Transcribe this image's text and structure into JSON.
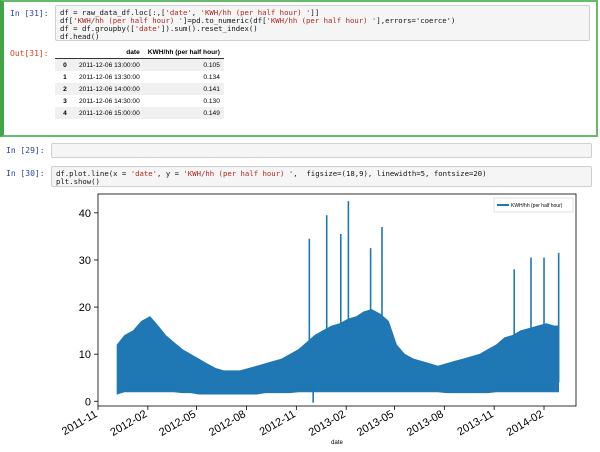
{
  "cell31": {
    "prompt_in": "In [31]:",
    "prompt_out": "Out[31]:",
    "code": [
      {
        "pre": "df = raw_data_df.loc[:,[",
        "s1": "'date'",
        "mid": ", ",
        "s2": "'KWH/hh (per half hour) '",
        "post": "]]"
      },
      {
        "pre": "df[",
        "s1": "'KWH/hh (per half hour) '",
        "mid": "]=pd.to_numeric(df[",
        "s2": "'KWH/hh (per half hour) '",
        "post": "],errors='coerce')"
      },
      {
        "pre": "df = df.groupby([",
        "s1": "'date'",
        "mid": "]).sum().reset_index()",
        "s2": "",
        "post": ""
      },
      {
        "pre": "df.head()",
        "s1": "",
        "mid": "",
        "s2": "",
        "post": ""
      }
    ],
    "table": {
      "columns": [
        "date",
        "KWH/hh (per half hour)"
      ],
      "rows": [
        {
          "idx": "0",
          "date": "2011-12-06 13:00:00",
          "value": "0.105"
        },
        {
          "idx": "1",
          "date": "2011-12-06 13:30:00",
          "value": "0.134"
        },
        {
          "idx": "2",
          "date": "2011-12-06 14:00:00",
          "value": "0.141"
        },
        {
          "idx": "3",
          "date": "2011-12-06 14:30:00",
          "value": "0.130"
        },
        {
          "idx": "4",
          "date": "2011-12-06 15:00:00",
          "value": "0.149"
        }
      ]
    }
  },
  "cell29": {
    "prompt_in": "In [29]:",
    "code": ""
  },
  "cell30": {
    "prompt_in": "In [30]:",
    "code": [
      {
        "pre": "df.plot.line(x = ",
        "s1": "'date'",
        "mid": ", y = ",
        "s2": "'KWH/hh (per half hour) '",
        "post": ",  figsize=(18,9), linewidth=5, fontsize=20)"
      },
      {
        "pre": "plt.show()",
        "s1": "",
        "mid": "",
        "s2": "",
        "post": ""
      }
    ]
  },
  "colors": {
    "series": "#1f77b4",
    "selected_border": "#42a447",
    "prompt_in": "#30409f",
    "prompt_out": "#d84315"
  },
  "chart_data": {
    "type": "line",
    "xlabel": "date",
    "ylabel": "",
    "ylim": [
      -1,
      44
    ],
    "yticks": [
      0,
      10,
      20,
      30,
      40
    ],
    "xlim": [
      "2011-11-01",
      "2014-04-01"
    ],
    "xticks": [
      "2011-11",
      "2012-02",
      "2012-05",
      "2012-08",
      "2012-11",
      "2013-02",
      "2013-05",
      "2013-08",
      "2013-11",
      "2014-02"
    ],
    "legend": {
      "placement": "top-right",
      "entries": [
        "KWH/hh (per half hour)"
      ]
    },
    "series": [
      {
        "name": "KWH/hh (per half hour)",
        "envelope": {
          "dates": [
            "2011-12-06",
            "2011-12-20",
            "2012-01-05",
            "2012-01-20",
            "2012-02-05",
            "2012-02-20",
            "2012-03-05",
            "2012-03-20",
            "2012-04-05",
            "2012-04-20",
            "2012-05-05",
            "2012-05-20",
            "2012-06-05",
            "2012-06-20",
            "2012-07-05",
            "2012-07-20",
            "2012-08-05",
            "2012-08-20",
            "2012-09-05",
            "2012-09-20",
            "2012-10-05",
            "2012-10-20",
            "2012-11-05",
            "2012-11-20",
            "2012-12-05",
            "2012-12-20",
            "2013-01-05",
            "2013-01-20",
            "2013-02-05",
            "2013-02-20",
            "2013-03-05",
            "2013-03-20",
            "2013-04-05",
            "2013-04-20",
            "2013-05-05",
            "2013-05-20",
            "2013-06-05",
            "2013-06-20",
            "2013-07-05",
            "2013-07-20",
            "2013-08-05",
            "2013-08-20",
            "2013-09-05",
            "2013-09-20",
            "2013-10-05",
            "2013-10-20",
            "2013-11-05",
            "2013-11-20",
            "2013-12-05",
            "2013-12-20",
            "2014-01-05",
            "2014-01-20",
            "2014-02-05",
            "2014-02-20",
            "2014-02-28"
          ],
          "min": [
            1.5,
            2.0,
            2.0,
            2.0,
            2.0,
            2.0,
            2.0,
            2.0,
            1.8,
            1.8,
            1.5,
            1.5,
            1.5,
            1.5,
            1.5,
            1.5,
            1.5,
            1.5,
            1.8,
            1.8,
            1.8,
            1.8,
            2.0,
            2.0,
            2.0,
            2.0,
            2.0,
            2.0,
            2.0,
            2.0,
            2.0,
            2.0,
            2.0,
            2.0,
            2.0,
            2.0,
            2.0,
            2.0,
            2.0,
            2.0,
            1.8,
            1.8,
            1.8,
            1.8,
            1.8,
            1.8,
            2.0,
            2.0,
            2.0,
            2.0,
            2.0,
            2.0,
            2.0,
            2.0,
            2.0
          ],
          "max": [
            12.0,
            14.0,
            15.0,
            17.0,
            18.0,
            16.0,
            14.0,
            12.5,
            11.0,
            10.0,
            9.0,
            8.0,
            7.0,
            6.5,
            6.5,
            6.5,
            7.0,
            7.5,
            8.0,
            8.5,
            9.0,
            10.0,
            11.0,
            12.5,
            14.0,
            15.0,
            16.0,
            16.5,
            17.5,
            18.0,
            19.0,
            19.5,
            18.5,
            17.0,
            12.0,
            10.0,
            9.0,
            8.5,
            8.0,
            7.5,
            8.0,
            8.5,
            9.0,
            9.5,
            10.0,
            11.0,
            12.0,
            13.5,
            14.0,
            15.0,
            15.5,
            16.0,
            16.5,
            16.0,
            16.0
          ]
        },
        "spikes": [
          {
            "date": "2012-11-25",
            "value": 34.5
          },
          {
            "date": "2012-12-02",
            "value": -0.3
          },
          {
            "date": "2012-12-27",
            "value": 39.5
          },
          {
            "date": "2013-01-22",
            "value": 35.5
          },
          {
            "date": "2013-02-05",
            "value": 42.5
          },
          {
            "date": "2013-03-18",
            "value": 32.5
          },
          {
            "date": "2013-04-08",
            "value": 37.0
          },
          {
            "date": "2013-12-08",
            "value": 28.0
          },
          {
            "date": "2014-01-08",
            "value": 30.5
          },
          {
            "date": "2014-02-01",
            "value": 30.5
          },
          {
            "date": "2014-02-28",
            "value": 31.5
          }
        ]
      }
    ]
  }
}
